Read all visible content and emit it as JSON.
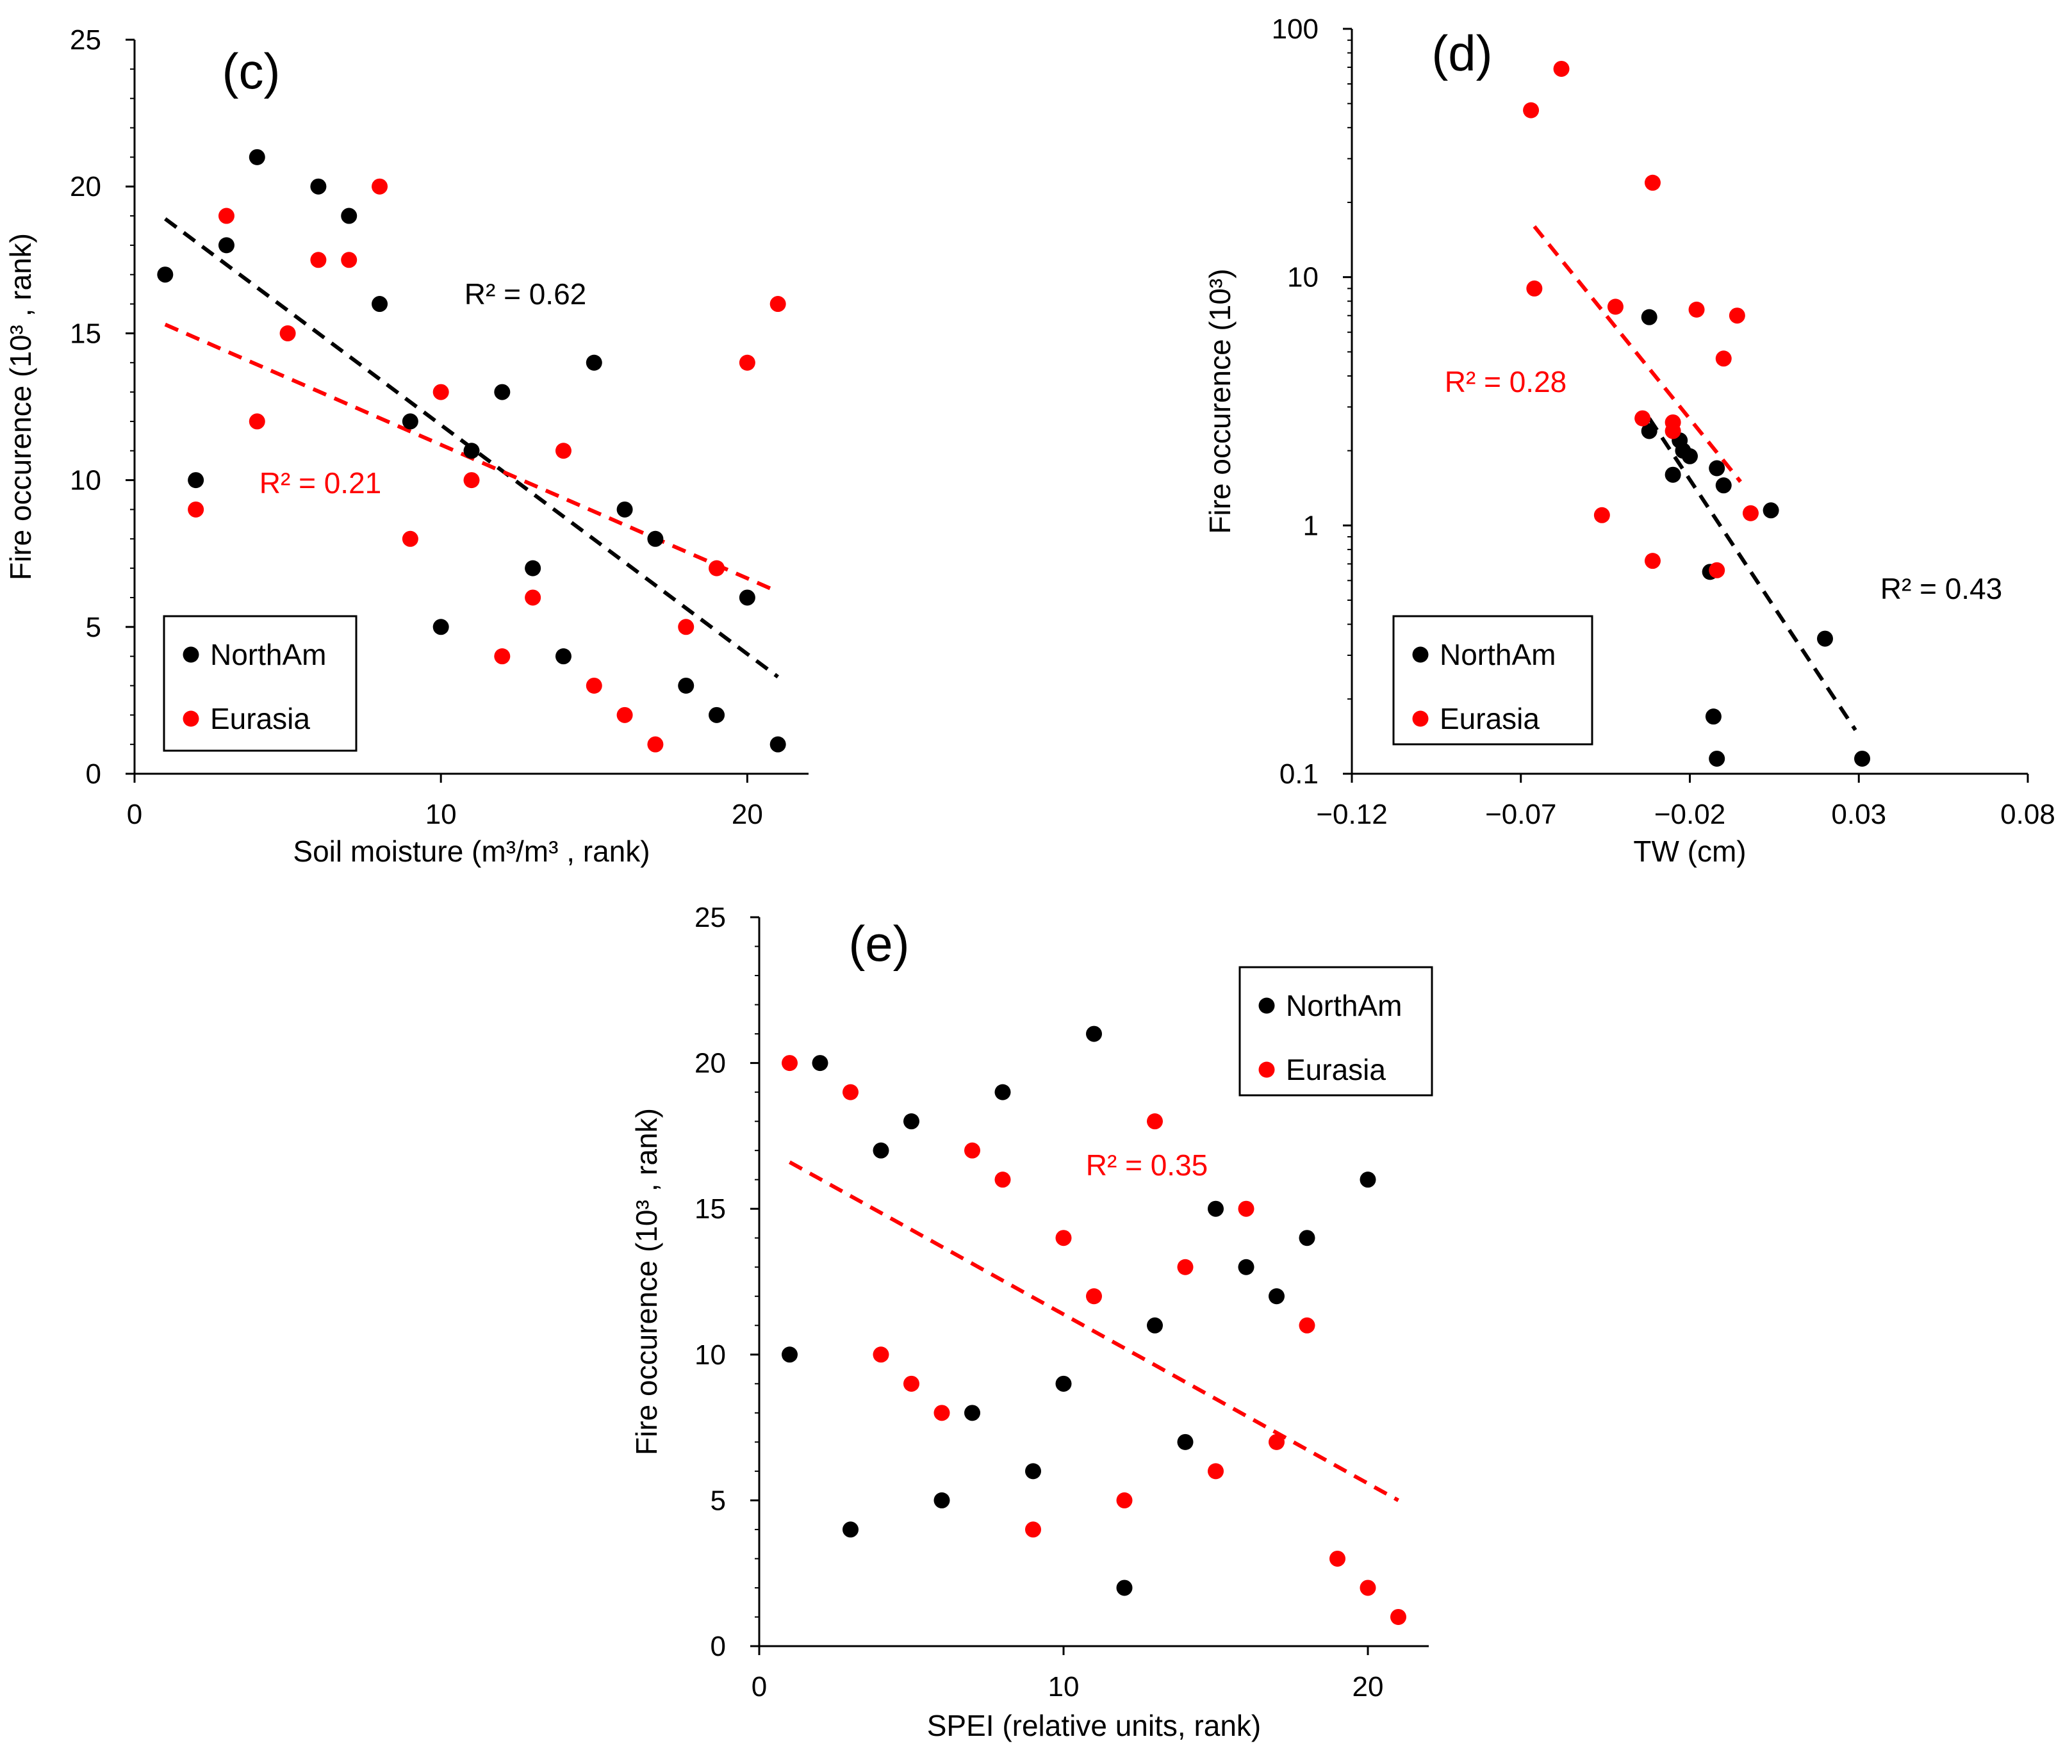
{
  "chart_data": [
    {
      "id": "c",
      "type": "scatter",
      "panel_label": "(c)",
      "xlabel": "Soil moisture (m³/m³ , rank)",
      "ylabel": "Fire occurence (10³ , rank)",
      "xlim": [
        0,
        22
      ],
      "ylim": [
        0,
        25
      ],
      "yscale": "linear",
      "xticks": [
        0,
        10,
        20
      ],
      "xtick_labels": [
        "0",
        "10",
        "20"
      ],
      "yticks": [
        0,
        5,
        10,
        15,
        20,
        25
      ],
      "ytick_labels": [
        "0",
        "5",
        "10",
        "15",
        "20",
        "25"
      ],
      "legend": {
        "position": "bottom-left",
        "entries": [
          "NorthAm",
          "Eurasia"
        ]
      },
      "series": [
        {
          "name": "NorthAm",
          "color": "#000000",
          "points": [
            [
              1,
              17
            ],
            [
              2,
              10
            ],
            [
              3,
              18
            ],
            [
              4,
              21
            ],
            [
              6,
              20
            ],
            [
              7,
              19
            ],
            [
              8,
              16
            ],
            [
              9,
              12
            ],
            [
              10,
              5
            ],
            [
              11,
              11
            ],
            [
              12,
              13
            ],
            [
              13,
              7
            ],
            [
              14,
              4
            ],
            [
              15,
              14
            ],
            [
              16,
              9
            ],
            [
              17,
              8
            ],
            [
              18,
              3
            ],
            [
              19,
              2
            ],
            [
              20,
              6
            ],
            [
              21,
              1
            ]
          ],
          "trendline": {
            "x": [
              1,
              21
            ],
            "y": [
              18.9,
              3.3
            ]
          },
          "r2": "R² = 0.62"
        },
        {
          "name": "Eurasia",
          "color": "#ff0000",
          "points": [
            [
              2,
              9
            ],
            [
              3,
              19
            ],
            [
              4,
              12
            ],
            [
              5,
              15
            ],
            [
              6,
              17.5
            ],
            [
              7,
              17.5
            ],
            [
              8,
              20
            ],
            [
              9,
              8
            ],
            [
              10,
              13
            ],
            [
              11,
              10
            ],
            [
              12,
              4
            ],
            [
              13,
              6
            ],
            [
              14,
              11
            ],
            [
              15,
              3
            ],
            [
              16,
              2
            ],
            [
              17,
              1
            ],
            [
              18,
              5
            ],
            [
              19,
              7
            ],
            [
              20,
              14
            ],
            [
              21,
              16
            ]
          ],
          "trendline": {
            "x": [
              1,
              21
            ],
            "y": [
              15.3,
              6.2
            ]
          },
          "r2": "R² = 0.21"
        }
      ]
    },
    {
      "id": "d",
      "type": "scatter",
      "panel_label": "(d)",
      "xlabel": "TW (cm)",
      "ylabel": "Fire occurence (10³)",
      "xlim": [
        -0.12,
        0.08
      ],
      "ylim": [
        0.1,
        100
      ],
      "yscale": "log",
      "xticks": [
        -0.12,
        -0.07,
        -0.02,
        0.03,
        0.08
      ],
      "xtick_labels": [
        "−0.12",
        "−0.07",
        "−0.02",
        "0.03",
        "0.08"
      ],
      "yticks": [
        0.1,
        1,
        10,
        100
      ],
      "ytick_labels": [
        "0.1",
        "1",
        "10",
        "100"
      ],
      "legend": {
        "position": "bottom-left",
        "entries": [
          "NorthAm",
          "Eurasia"
        ]
      },
      "series": [
        {
          "name": "NorthAm",
          "color": "#000000",
          "points": [
            [
              -0.032,
              6.9
            ],
            [
              -0.032,
              2.4
            ],
            [
              -0.025,
              1.6
            ],
            [
              -0.023,
              2.2
            ],
            [
              -0.022,
              2.0
            ],
            [
              -0.02,
              1.9
            ],
            [
              -0.014,
              0.65
            ],
            [
              -0.012,
              1.7
            ],
            [
              -0.01,
              1.45
            ],
            [
              -0.013,
              0.17
            ],
            [
              -0.012,
              0.115
            ],
            [
              0.004,
              1.15
            ],
            [
              0.02,
              0.35
            ],
            [
              0.031,
              0.115
            ]
          ],
          "trendline": {
            "x": [
              -0.032,
              0.029
            ],
            "y": [
              2.7,
              0.15
            ]
          },
          "r2": "R² = 0.43"
        },
        {
          "name": "Eurasia",
          "color": "#ff0000",
          "points": [
            [
              -0.067,
              47
            ],
            [
              -0.058,
              69
            ],
            [
              -0.031,
              24
            ],
            [
              -0.066,
              9
            ],
            [
              -0.042,
              7.6
            ],
            [
              -0.018,
              7.4
            ],
            [
              -0.006,
              7.0
            ],
            [
              -0.01,
              4.7
            ],
            [
              -0.034,
              2.7
            ],
            [
              -0.025,
              2.6
            ],
            [
              -0.025,
              2.4
            ],
            [
              -0.046,
              1.1
            ],
            [
              -0.002,
              1.12
            ],
            [
              -0.031,
              0.72
            ],
            [
              -0.012,
              0.66
            ]
          ],
          "trendline": {
            "x": [
              -0.066,
              -0.005
            ],
            "y": [
              16,
              1.5
            ]
          },
          "r2": "R² = 0.28"
        }
      ]
    },
    {
      "id": "e",
      "type": "scatter",
      "panel_label": "(e)",
      "xlabel": "SPEI (relative units, rank)",
      "ylabel": "Fire occurence (10³ , rank)",
      "xlim": [
        0,
        22
      ],
      "ylim": [
        0,
        25
      ],
      "yscale": "linear",
      "xticks": [
        0,
        10,
        20
      ],
      "xtick_labels": [
        "0",
        "10",
        "20"
      ],
      "yticks": [
        0,
        5,
        10,
        15,
        20,
        25
      ],
      "ytick_labels": [
        "0",
        "5",
        "10",
        "15",
        "20",
        "25"
      ],
      "legend": {
        "position": "top-right",
        "entries": [
          "NorthAm",
          "Eurasia"
        ]
      },
      "series": [
        {
          "name": "NorthAm",
          "color": "#000000",
          "points": [
            [
              1,
              10
            ],
            [
              2,
              20
            ],
            [
              3,
              4
            ],
            [
              4,
              17
            ],
            [
              5,
              18
            ],
            [
              6,
              5
            ],
            [
              7,
              8
            ],
            [
              8,
              19
            ],
            [
              9,
              6
            ],
            [
              10,
              9
            ],
            [
              11,
              21
            ],
            [
              12,
              2
            ],
            [
              13,
              11
            ],
            [
              14,
              7
            ],
            [
              15,
              15
            ],
            [
              16,
              13
            ],
            [
              17,
              12
            ],
            [
              18,
              14
            ],
            [
              20,
              16
            ]
          ],
          "trendline": null,
          "r2": ""
        },
        {
          "name": "Eurasia",
          "color": "#ff0000",
          "points": [
            [
              1,
              20
            ],
            [
              3,
              19
            ],
            [
              4,
              10
            ],
            [
              5,
              9
            ],
            [
              6,
              8
            ],
            [
              7,
              17
            ],
            [
              8,
              16
            ],
            [
              9,
              4
            ],
            [
              10,
              14
            ],
            [
              11,
              12
            ],
            [
              12,
              5
            ],
            [
              13,
              18
            ],
            [
              14,
              13
            ],
            [
              15,
              6
            ],
            [
              16,
              15
            ],
            [
              17,
              7
            ],
            [
              18,
              11
            ],
            [
              19,
              3
            ],
            [
              20,
              2
            ],
            [
              21,
              1
            ]
          ],
          "trendline": {
            "x": [
              1,
              21
            ],
            "y": [
              16.6,
              5.0
            ]
          },
          "r2": "R² = 0.35"
        }
      ]
    }
  ]
}
